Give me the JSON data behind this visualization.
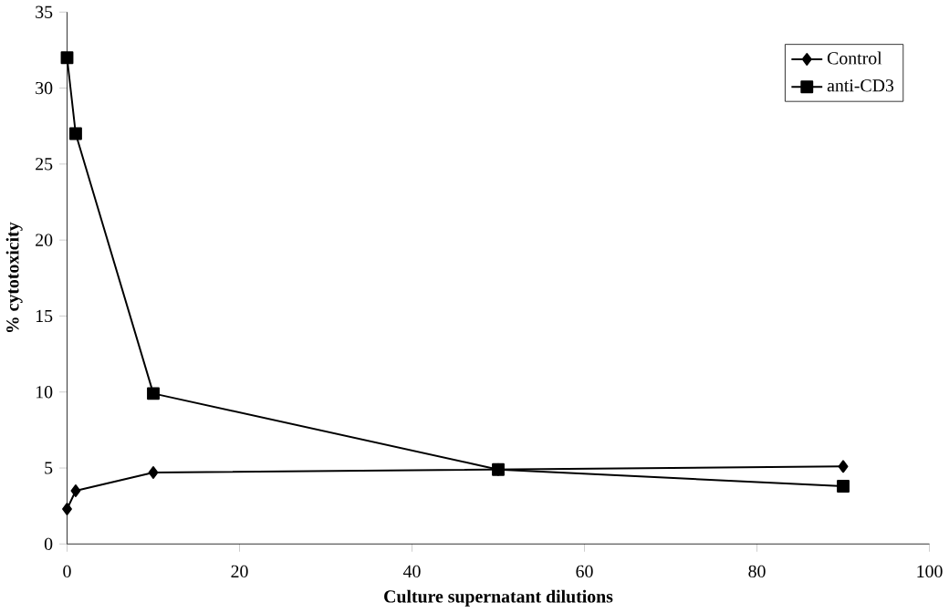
{
  "chart_data": {
    "type": "line",
    "xlabel": "Culture supernatant dilutions",
    "ylabel": "% cytotoxicity",
    "x": [
      0,
      1,
      10,
      50,
      90
    ],
    "series": [
      {
        "name": "Control",
        "color": "#000000",
        "marker": "diamond",
        "values": [
          2.3,
          3.5,
          4.7,
          4.9,
          5.1
        ]
      },
      {
        "name": "anti-CD3",
        "color": "#000000",
        "marker": "square",
        "values": [
          32,
          27,
          9.9,
          4.9,
          3.8
        ]
      }
    ],
    "xlim": [
      0,
      100
    ],
    "xticks": [
      0,
      20,
      40,
      60,
      80,
      100
    ],
    "ylim": [
      0,
      35
    ],
    "yticks": [
      0,
      5,
      10,
      15,
      20,
      25,
      30,
      35
    ],
    "grid": false,
    "legend": "top right",
    "line_style": "solid"
  }
}
